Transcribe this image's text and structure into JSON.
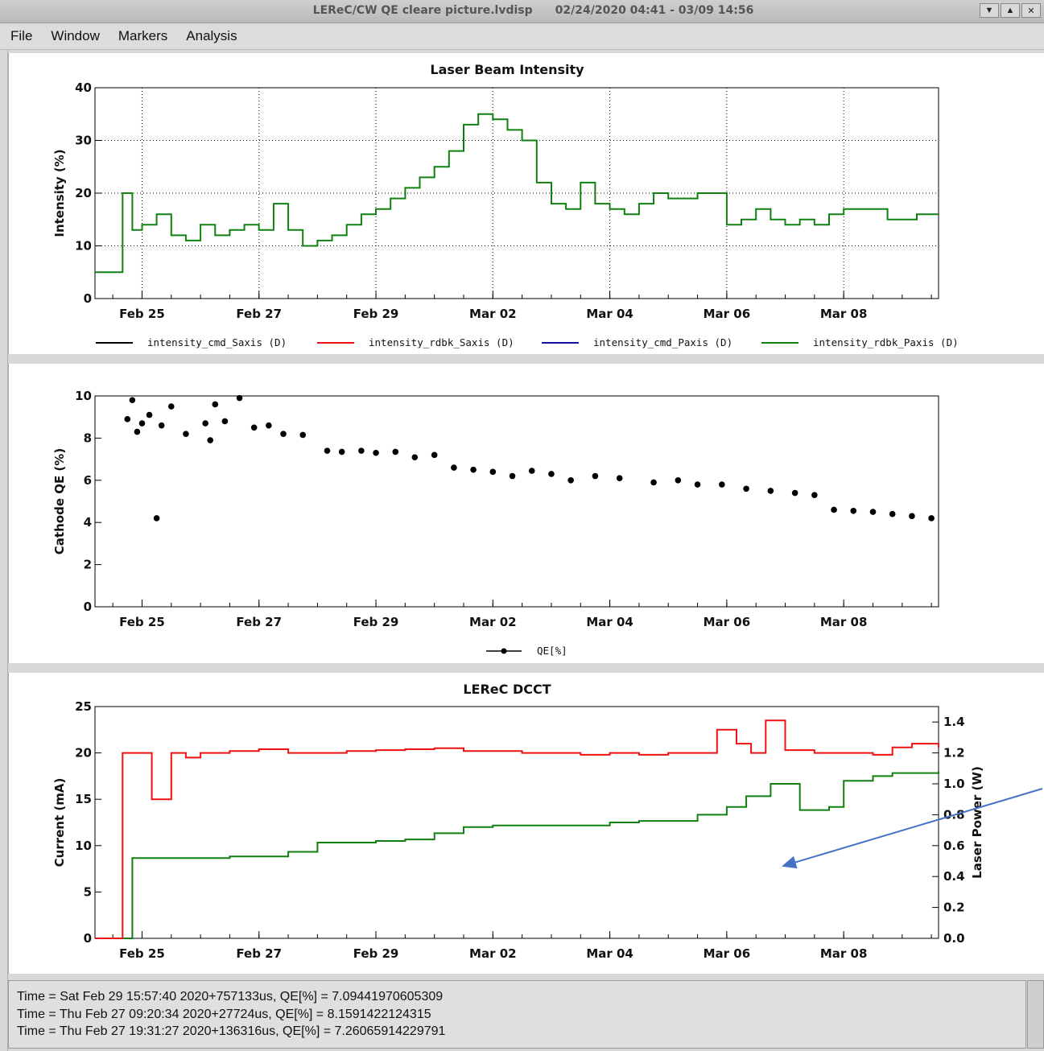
{
  "window": {
    "title": "LEReC/CW QE cleare picture.lvdisp",
    "range": "02/24/2020 04:41 - 03/09 14:56",
    "buttons": [
      "▼",
      "▲",
      "✕"
    ]
  },
  "menu": [
    "File",
    "Window",
    "Markers",
    "Analysis"
  ],
  "status_lines": [
    "Time = Sat Feb 29 15:57:40 2020+757133us,   QE[%] = 7.09441970605309",
    "Time = Thu Feb 27 09:20:34 2020+27724us,   QE[%] = 8.1591422124315",
    "Time = Thu Feb 27 19:31:27 2020+136316us,   QE[%] = 7.26065914229791"
  ],
  "chart_data": [
    {
      "type": "line",
      "title": "Laser Beam Intensity",
      "xlabel": "",
      "ylabel": "Intensity (%)",
      "x_range": [
        "2020-02-24 04:41",
        "2020-03-09 14:56"
      ],
      "x_ticks": [
        "Feb 25",
        "Feb 27",
        "Feb 29",
        "Mar 02",
        "Mar 04",
        "Mar 06",
        "Mar 08"
      ],
      "ylim": [
        0,
        40
      ],
      "y_ticks": [
        0,
        10,
        20,
        30,
        40
      ],
      "grid": true,
      "legend_position": "bottom",
      "series": [
        {
          "name": "intensity_cmd_Saxis (D)",
          "color": "#000000",
          "x": [],
          "y": []
        },
        {
          "name": "intensity_rdbk_Saxis (D)",
          "color": "#ee1111",
          "x": [],
          "y": []
        },
        {
          "name": "intensity_cmd_Paxis (D)",
          "color": "#1010a0",
          "x": [],
          "y": []
        },
        {
          "name": "intensity_rdbk_Paxis (D)",
          "color": "#108010",
          "x": [
            "2020-02-24 04:41",
            "2020-02-24 12:00",
            "2020-02-24 16:00",
            "2020-02-24 20:00",
            "2020-02-25 00:00",
            "2020-02-25 06:00",
            "2020-02-25 12:00",
            "2020-02-25 18:00",
            "2020-02-26 00:00",
            "2020-02-26 06:00",
            "2020-02-26 12:00",
            "2020-02-26 18:00",
            "2020-02-27 00:00",
            "2020-02-27 06:00",
            "2020-02-27 12:00",
            "2020-02-27 18:00",
            "2020-02-28 00:00",
            "2020-02-28 06:00",
            "2020-02-28 12:00",
            "2020-02-28 18:00",
            "2020-02-29 00:00",
            "2020-02-29 06:00",
            "2020-02-29 12:00",
            "2020-02-29 18:00",
            "2020-03-01 00:00",
            "2020-03-01 06:00",
            "2020-03-01 12:00",
            "2020-03-01 18:00",
            "2020-03-02 00:00",
            "2020-03-02 06:00",
            "2020-03-02 12:00",
            "2020-03-02 18:00",
            "2020-03-03 00:00",
            "2020-03-03 06:00",
            "2020-03-03 12:00",
            "2020-03-03 18:00",
            "2020-03-04 00:00",
            "2020-03-04 06:00",
            "2020-03-04 12:00",
            "2020-03-04 18:00",
            "2020-03-05 00:00",
            "2020-03-05 06:00",
            "2020-03-05 12:00",
            "2020-03-05 18:00",
            "2020-03-06 00:00",
            "2020-03-06 06:00",
            "2020-03-06 12:00",
            "2020-03-06 18:00",
            "2020-03-07 00:00",
            "2020-03-07 06:00",
            "2020-03-07 12:00",
            "2020-03-07 18:00",
            "2020-03-08 00:00",
            "2020-03-08 06:00",
            "2020-03-08 12:00",
            "2020-03-08 18:00",
            "2020-03-09 00:00",
            "2020-03-09 06:00",
            "2020-03-09 14:56"
          ],
          "y": [
            5,
            5,
            20,
            13,
            14,
            16,
            12,
            11,
            14,
            12,
            13,
            14,
            13,
            18,
            13,
            10,
            11,
            12,
            14,
            16,
            17,
            19,
            21,
            23,
            25,
            28,
            33,
            35,
            34,
            32,
            30,
            22,
            18,
            17,
            22,
            18,
            17,
            16,
            18,
            20,
            19,
            19,
            20,
            20,
            14,
            15,
            17,
            15,
            14,
            15,
            14,
            16,
            17,
            17,
            17,
            15,
            15,
            16,
            16
          ]
        }
      ]
    },
    {
      "type": "scatter",
      "title": "",
      "xlabel": "",
      "ylabel": "Cathode QE (%)",
      "x_range": [
        "2020-02-24 04:41",
        "2020-03-09 14:56"
      ],
      "x_ticks": [
        "Feb 25",
        "Feb 27",
        "Feb 29",
        "Mar 02",
        "Mar 04",
        "Mar 06",
        "Mar 08"
      ],
      "ylim": [
        0,
        10
      ],
      "y_ticks": [
        0,
        2,
        4,
        6,
        8,
        10
      ],
      "grid": false,
      "legend_position": "bottom",
      "series": [
        {
          "name": "QE[%]",
          "color": "#000000",
          "x": [
            "2020-02-24 18:00",
            "2020-02-24 20:00",
            "2020-02-24 22:00",
            "2020-02-25 00:00",
            "2020-02-25 03:00",
            "2020-02-25 06:00",
            "2020-02-25 08:00",
            "2020-02-25 12:00",
            "2020-02-25 18:00",
            "2020-02-26 02:00",
            "2020-02-26 04:00",
            "2020-02-26 06:00",
            "2020-02-26 10:00",
            "2020-02-26 16:00",
            "2020-02-26 22:00",
            "2020-02-27 04:00",
            "2020-02-27 10:00",
            "2020-02-27 18:00",
            "2020-02-28 04:00",
            "2020-02-28 10:00",
            "2020-02-28 18:00",
            "2020-02-29 00:00",
            "2020-02-29 08:00",
            "2020-02-29 15:57",
            "2020-03-01 00:00",
            "2020-03-01 08:00",
            "2020-03-01 16:00",
            "2020-03-02 00:00",
            "2020-03-02 08:00",
            "2020-03-02 16:00",
            "2020-03-03 00:00",
            "2020-03-03 08:00",
            "2020-03-03 18:00",
            "2020-03-04 04:00",
            "2020-03-04 18:00",
            "2020-03-05 04:00",
            "2020-03-05 12:00",
            "2020-03-05 22:00",
            "2020-03-06 08:00",
            "2020-03-06 18:00",
            "2020-03-07 04:00",
            "2020-03-07 12:00",
            "2020-03-07 20:00",
            "2020-03-08 04:00",
            "2020-03-08 12:00",
            "2020-03-08 20:00",
            "2020-03-09 04:00",
            "2020-03-09 12:00"
          ],
          "y": [
            8.9,
            9.8,
            8.3,
            8.7,
            9.1,
            4.2,
            8.6,
            9.5,
            8.2,
            8.7,
            7.9,
            9.6,
            8.8,
            9.9,
            8.5,
            8.6,
            8.2,
            8.15,
            7.4,
            7.35,
            7.4,
            7.3,
            7.35,
            7.09,
            7.2,
            6.6,
            6.5,
            6.4,
            6.2,
            6.45,
            6.3,
            6.0,
            6.2,
            6.1,
            5.9,
            6.0,
            5.8,
            5.8,
            5.6,
            5.5,
            5.4,
            5.3,
            4.6,
            4.55,
            4.5,
            4.4,
            4.3,
            4.2
          ]
        }
      ]
    },
    {
      "type": "line",
      "title": "LEReC DCCT",
      "xlabel": "",
      "ylabel": "Current (mA)",
      "ylabel_right": "Laser Power (W)",
      "x_range": [
        "2020-02-24 04:41",
        "2020-03-09 14:56"
      ],
      "x_ticks": [
        "Feb 25",
        "Feb 27",
        "Feb 29",
        "Mar 02",
        "Mar 04",
        "Mar 06",
        "Mar 08"
      ],
      "ylim": [
        0,
        25
      ],
      "y_ticks": [
        0,
        5,
        10,
        15,
        20,
        25
      ],
      "ylim_right": [
        0,
        1.5
      ],
      "y_ticks_right": [
        "0.0",
        "0.2",
        "0.4",
        "0.6",
        "0.8",
        "1.0",
        "1.2",
        "1.4"
      ],
      "grid": false,
      "series": [
        {
          "name": "Current (mA)",
          "color": "#ee1111",
          "axis": "left",
          "x": [
            "2020-02-24 04:41",
            "2020-02-24 12:00",
            "2020-02-24 16:00",
            "2020-02-24 20:00",
            "2020-02-25 04:00",
            "2020-02-25 12:00",
            "2020-02-25 18:00",
            "2020-02-26 00:00",
            "2020-02-26 12:00",
            "2020-02-27 00:00",
            "2020-02-27 12:00",
            "2020-02-28 00:00",
            "2020-02-28 12:00",
            "2020-02-29 00:00",
            "2020-02-29 12:00",
            "2020-03-01 00:00",
            "2020-03-01 12:00",
            "2020-03-02 00:00",
            "2020-03-02 12:00",
            "2020-03-03 00:00",
            "2020-03-03 12:00",
            "2020-03-04 00:00",
            "2020-03-04 12:00",
            "2020-03-05 00:00",
            "2020-03-05 12:00",
            "2020-03-05 20:00",
            "2020-03-06 04:00",
            "2020-03-06 10:00",
            "2020-03-06 16:00",
            "2020-03-07 00:00",
            "2020-03-07 12:00",
            "2020-03-08 00:00",
            "2020-03-08 12:00",
            "2020-03-08 20:00",
            "2020-03-09 04:00",
            "2020-03-09 14:56"
          ],
          "y": [
            0,
            0,
            20,
            20,
            15,
            20,
            19.5,
            20,
            20.2,
            20.4,
            20,
            20,
            20.2,
            20.3,
            20.4,
            20.5,
            20.2,
            20.2,
            20,
            20,
            19.8,
            20,
            19.8,
            20,
            20,
            22.5,
            21,
            20,
            23.5,
            20.3,
            20,
            20,
            19.8,
            20.6,
            21,
            20.6
          ]
        },
        {
          "name": "Laser Power (W)",
          "color": "#108010",
          "axis": "right",
          "x": [
            "2020-02-24 04:41",
            "2020-02-24 20:00",
            "2020-02-25 12:00",
            "2020-02-26 12:00",
            "2020-02-27 12:00",
            "2020-02-28 00:00",
            "2020-02-29 00:00",
            "2020-02-29 12:00",
            "2020-03-01 00:00",
            "2020-03-01 12:00",
            "2020-03-02 00:00",
            "2020-03-03 00:00",
            "2020-03-04 00:00",
            "2020-03-04 12:00",
            "2020-03-05 00:00",
            "2020-03-05 12:00",
            "2020-03-06 00:00",
            "2020-03-06 08:00",
            "2020-03-06 18:00",
            "2020-03-07 06:00",
            "2020-03-07 18:00",
            "2020-03-08 00:00",
            "2020-03-08 12:00",
            "2020-03-08 20:00",
            "2020-03-09 04:00",
            "2020-03-09 14:56"
          ],
          "y": [
            0,
            0.52,
            0.52,
            0.53,
            0.56,
            0.62,
            0.63,
            0.64,
            0.68,
            0.72,
            0.73,
            0.73,
            0.75,
            0.76,
            0.76,
            0.8,
            0.85,
            0.92,
            1.0,
            0.83,
            0.85,
            1.02,
            1.05,
            1.07,
            1.07,
            1.08
          ]
        }
      ]
    }
  ]
}
